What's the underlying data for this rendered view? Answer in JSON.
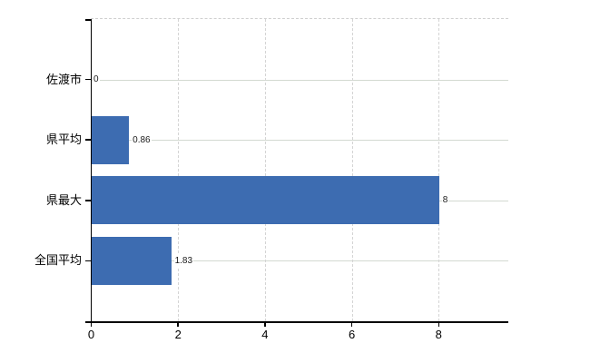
{
  "chart_data": {
    "type": "bar",
    "orientation": "horizontal",
    "title": "",
    "xlabel": "",
    "ylabel": "",
    "categories": [
      "佐渡市",
      "県平均",
      "県最大",
      "全国平均"
    ],
    "values": [
      0,
      0.86,
      8,
      1.83
    ],
    "value_labels": [
      "0",
      "0.86",
      "8",
      "1.83"
    ],
    "x_ticks": [
      0,
      2,
      4,
      6,
      8
    ],
    "x_tick_labels": [
      "0",
      "2",
      "4",
      "6",
      "8"
    ],
    "xlim": [
      0,
      9.6
    ],
    "grid": true,
    "legend": false,
    "bar_color": "#3d6cb1",
    "axis_color": "#000000",
    "h_grid_color": "#d3d9d1",
    "v_grid_color": "#d4d4d4",
    "top_border_color": "#cfcfcf",
    "background_color": "#ffffff"
  }
}
